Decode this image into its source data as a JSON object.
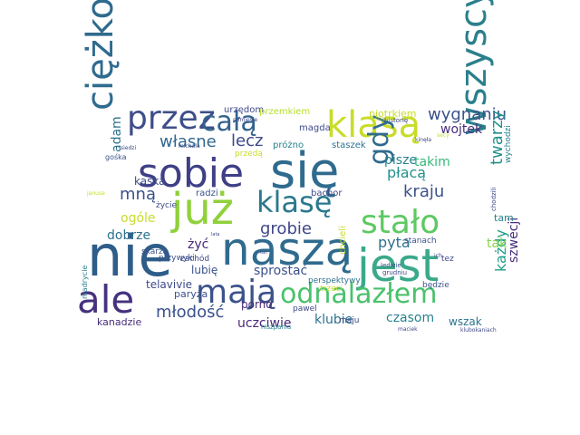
{
  "words": [
    {
      "text": "się",
      "color": "#2f6b8e"
    },
    {
      "text": "nie",
      "color": "#2e5d89"
    },
    {
      "text": "wszyscy",
      "color": "#2b7f8c"
    },
    {
      "text": "naszą",
      "color": "#2f6b8e"
    },
    {
      "text": "jest",
      "color": "#3aa98a"
    },
    {
      "text": "sobie",
      "color": "#3f3f87"
    },
    {
      "text": "już",
      "color": "#8fd13a"
    },
    {
      "text": "ciężko",
      "color": "#2f6b8e"
    },
    {
      "text": "przez",
      "color": "#3e4e8a"
    },
    {
      "text": "klasą",
      "color": "#c8dc2a"
    },
    {
      "text": "ale",
      "color": "#46327e"
    },
    {
      "text": "mają",
      "color": "#3b528b"
    },
    {
      "text": "klasę",
      "color": "#2a788e"
    },
    {
      "text": "stało",
      "color": "#5ec962"
    },
    {
      "text": "odnalazłem",
      "color": "#4ac16d"
    },
    {
      "text": "całą",
      "color": "#33638d"
    },
    {
      "text": "gdy",
      "color": "#2f6b8e"
    },
    {
      "text": "wygnaniu",
      "color": "#3b528b"
    },
    {
      "text": "twarzy",
      "color": "#21918c"
    },
    {
      "text": "grobie",
      "color": "#404688"
    },
    {
      "text": "kraju",
      "color": "#3b528b"
    },
    {
      "text": "lecz",
      "color": "#3e4989"
    },
    {
      "text": "własne",
      "color": "#31688e"
    },
    {
      "text": "młodość",
      "color": "#3b528b"
    },
    {
      "text": "wojtek",
      "color": "#472d7b"
    },
    {
      "text": "pyta",
      "color": "#2c728e"
    },
    {
      "text": "mną",
      "color": "#3b528b"
    },
    {
      "text": "każdy",
      "color": "#1f9e89"
    },
    {
      "text": "szwecji",
      "color": "#472d7b"
    },
    {
      "text": "płacą",
      "color": "#21918c"
    },
    {
      "text": "pisze",
      "color": "#26828e"
    },
    {
      "text": "takim",
      "color": "#35b779"
    },
    {
      "text": "sprostać",
      "color": "#3b528b"
    },
    {
      "text": "klubie",
      "color": "#2c728e"
    },
    {
      "text": "czasom",
      "color": "#26828e"
    },
    {
      "text": "uczciwie",
      "color": "#482878"
    },
    {
      "text": "porno",
      "color": "#482878"
    },
    {
      "text": "telavivie",
      "color": "#3e4989"
    },
    {
      "text": "lubię",
      "color": "#3b528b"
    },
    {
      "text": "żyć",
      "color": "#482878"
    },
    {
      "text": "dobrze",
      "color": "#2c728e"
    },
    {
      "text": "ogóle",
      "color": "#c8dc2a"
    },
    {
      "text": "adam",
      "color": "#2c728e"
    },
    {
      "text": "kaśka",
      "color": "#3e4989"
    },
    {
      "text": "kanadzie",
      "color": "#472d7b"
    },
    {
      "text": "paryża",
      "color": "#3b528b"
    },
    {
      "text": "wszak",
      "color": "#2c728e"
    },
    {
      "text": "tak",
      "color": "#86d549"
    },
    {
      "text": "tam",
      "color": "#26828e"
    },
    {
      "text": "piotrkiem",
      "color": "#c8dc2a"
    },
    {
      "text": "urzędom",
      "color": "#3e4989"
    },
    {
      "text": "przemkiem",
      "color": "#b5de2b"
    },
    {
      "text": "magda",
      "color": "#3e4989"
    },
    {
      "text": "staszek",
      "color": "#2c728e"
    },
    {
      "text": "próżno",
      "color": "#26828e"
    },
    {
      "text": "bachor",
      "color": "#3e4989"
    },
    {
      "text": "radzi",
      "color": "#3b528b"
    },
    {
      "text": "chcieli",
      "color": "#c8dc2a"
    },
    {
      "text": "perspektywy",
      "color": "#2c728e"
    },
    {
      "text": "trzeci",
      "color": "#c8dc2a"
    },
    {
      "text": "stanach",
      "color": "#3b528b"
    },
    {
      "text": "będzie",
      "color": "#3b528b"
    },
    {
      "text": "tez",
      "color": "#3e4989"
    },
    {
      "text": "maju",
      "color": "#3e4989"
    },
    {
      "text": "wychodzi",
      "color": "#26828e"
    },
    {
      "text": "przywyki",
      "color": "#3b528b"
    },
    {
      "text": "zachód",
      "color": "#3e4989"
    },
    {
      "text": "pawel",
      "color": "#3e4989"
    },
    {
      "text": "skarżą",
      "color": "#3b528b"
    },
    {
      "text": "życie",
      "color": "#3e4989"
    },
    {
      "text": "przedą",
      "color": "#c8dc2a"
    },
    {
      "text": "madrycie",
      "color": "#26828e"
    },
    {
      "text": "gośka",
      "color": "#3b528b"
    },
    {
      "text": "historię",
      "color": "#3e4989"
    },
    {
      "text": "ledwie",
      "color": "#3b528b"
    },
    {
      "text": "hiszpania",
      "color": "#26828e"
    },
    {
      "text": "grudniu",
      "color": "#3e4989"
    },
    {
      "text": "chodzili",
      "color": "#3e4989"
    },
    {
      "text": "maciek",
      "color": "#3e4989"
    },
    {
      "text": "klubokaniach",
      "color": "#3e4989"
    },
    {
      "text": "ich",
      "color": "#3e4989"
    },
    {
      "text": "michała",
      "color": "#3b528b"
    },
    {
      "text": "siedzi",
      "color": "#3e4989"
    },
    {
      "text": "pomiesie",
      "color": "#3e4989"
    },
    {
      "text": "kinęła",
      "color": "#3e4989"
    },
    {
      "text": "januse",
      "color": "#c8dc2a"
    },
    {
      "text": "secy",
      "color": "#c8dc2a"
    },
    {
      "text": "lata",
      "color": "#3e4989"
    },
    {
      "text": "tan",
      "color": "#3e4989"
    },
    {
      "text": "strzału",
      "color": "#c8dc2a"
    }
  ]
}
